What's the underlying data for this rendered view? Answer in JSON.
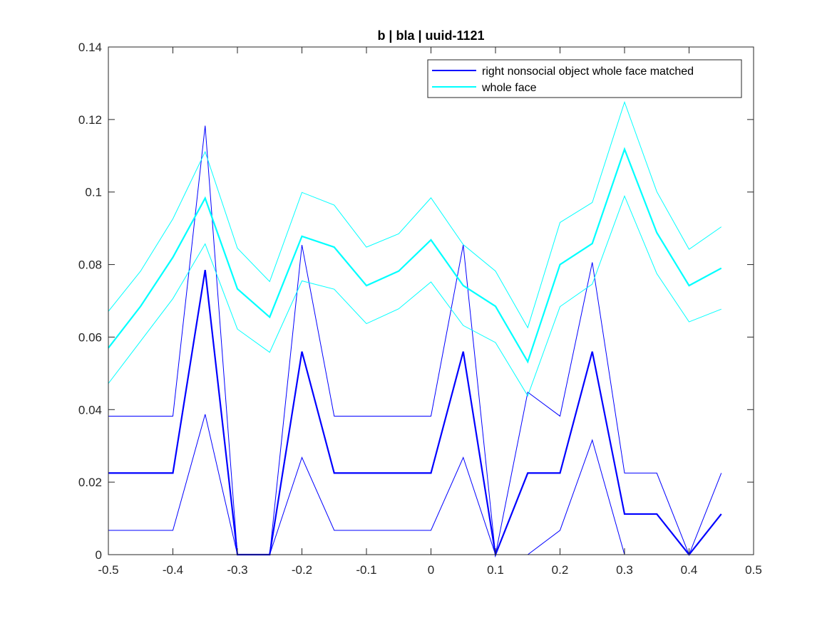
{
  "chart_data": {
    "type": "line",
    "title": "b | bla | uuid-1121",
    "xlabel": "",
    "ylabel": "",
    "xlim": [
      -0.5,
      0.5
    ],
    "ylim": [
      0,
      0.14
    ],
    "xticks": [
      -0.5,
      -0.4,
      -0.3,
      -0.2,
      -0.1,
      0,
      0.1,
      0.2,
      0.3,
      0.4,
      0.5
    ],
    "xtick_labels": [
      "-0.5",
      "-0.4",
      "-0.3",
      "-0.2",
      "-0.1",
      "0",
      "0.1",
      "0.2",
      "0.3",
      "0.4",
      "0.5"
    ],
    "yticks": [
      0,
      0.02,
      0.04,
      0.06,
      0.08,
      0.1,
      0.12,
      0.14
    ],
    "ytick_labels": [
      "0",
      "0.02",
      "0.04",
      "0.06",
      "0.08",
      "0.1",
      "0.12",
      "0.14"
    ],
    "grid": false,
    "legend_position": "top-right",
    "x": [
      -0.5,
      -0.45,
      -0.4,
      -0.35,
      -0.3,
      -0.25,
      -0.2,
      -0.15,
      -0.1,
      -0.05,
      0,
      0.05,
      0.1,
      0.15,
      0.2,
      0.25,
      0.3,
      0.35,
      0.4,
      0.45
    ],
    "series": [
      {
        "name": "right nonsocial object whole face matched",
        "color": "#0000ff",
        "values": [
          0.0225,
          0.0225,
          0.0225,
          0.0785,
          0.0,
          0.0,
          0.056,
          0.0225,
          0.0225,
          0.0225,
          0.0225,
          0.056,
          0.0,
          0.0225,
          0.0225,
          0.056,
          0.0112,
          0.0112,
          0.0,
          0.0112
        ],
        "upper": [
          0.0382,
          0.0382,
          0.0382,
          0.1183,
          0.0,
          0.0,
          0.0854,
          0.0382,
          0.0382,
          0.0382,
          0.0382,
          0.0854,
          0.0,
          0.0448,
          0.0382,
          0.0806,
          0.0225,
          0.0225,
          0.0,
          0.0225
        ],
        "lower": [
          0.0067,
          0.0067,
          0.0067,
          0.0387,
          0.0,
          0.0,
          0.0268,
          0.0067,
          0.0067,
          0.0067,
          0.0067,
          0.0268,
          0.0,
          0.0,
          0.0067,
          0.0316,
          0.0,
          0.0,
          0.0,
          0.0
        ]
      },
      {
        "name": "whole face",
        "color": "#00ffff",
        "values": [
          0.057,
          0.0685,
          0.082,
          0.0983,
          0.0733,
          0.0655,
          0.0878,
          0.0848,
          0.0742,
          0.0782,
          0.0868,
          0.0742,
          0.0685,
          0.0532,
          0.08,
          0.0858,
          0.1118,
          0.0888,
          0.0742,
          0.079
        ],
        "upper": [
          0.0671,
          0.0782,
          0.0926,
          0.1111,
          0.0845,
          0.0753,
          0.0999,
          0.0964,
          0.0848,
          0.0885,
          0.0984,
          0.0855,
          0.0782,
          0.0626,
          0.0916,
          0.0971,
          0.1248,
          0.1001,
          0.0842,
          0.0904
        ],
        "lower": [
          0.0472,
          0.0589,
          0.0706,
          0.0857,
          0.0622,
          0.0558,
          0.0755,
          0.0732,
          0.0637,
          0.0678,
          0.0752,
          0.0632,
          0.0585,
          0.0438,
          0.0684,
          0.0746,
          0.0989,
          0.0775,
          0.0642,
          0.0677
        ]
      }
    ]
  }
}
